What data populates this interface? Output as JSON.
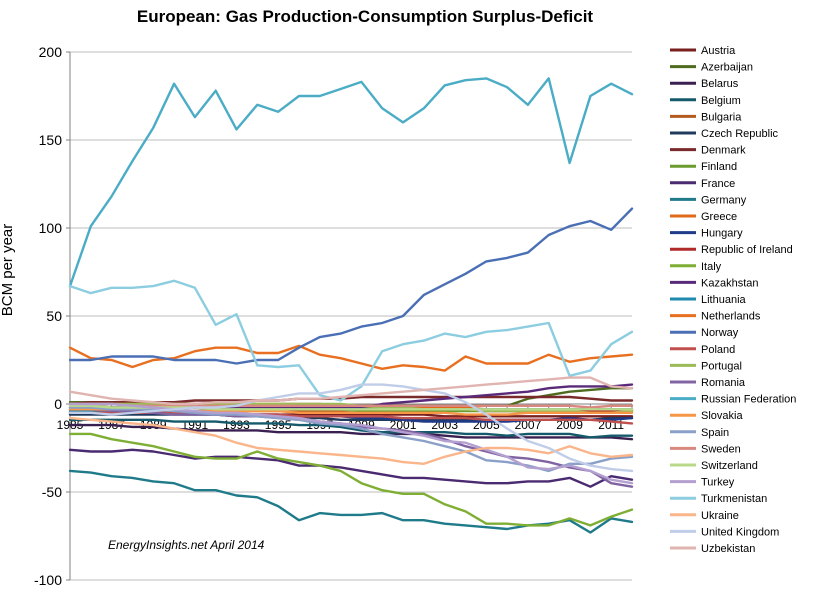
{
  "chart_data": {
    "type": "line",
    "title": "European: Gas Production-Consumption  Surplus-Deficit",
    "ylabel": "BCM per year",
    "xlabel": "",
    "annotation": "EnergyInsights.net April 2014",
    "ylim": [
      -100,
      200
    ],
    "yticks": [
      -100,
      -50,
      0,
      50,
      100,
      150,
      200
    ],
    "x": [
      1985,
      1986,
      1987,
      1988,
      1989,
      1990,
      1991,
      1992,
      1993,
      1994,
      1995,
      1996,
      1997,
      1998,
      1999,
      2000,
      2001,
      2002,
      2003,
      2004,
      2005,
      2006,
      2007,
      2008,
      2009,
      2010,
      2011,
      2012
    ],
    "xtick_labels": [
      "1985",
      "1987",
      "1989",
      "1991",
      "1993",
      "1995",
      "1997",
      "1999",
      "2001",
      "2003",
      "2005",
      "2007",
      "2009",
      "2011"
    ],
    "grid": "horizontal",
    "legend_position": "right",
    "series": [
      {
        "name": "Austria",
        "color": "#7a1f1f",
        "values": [
          -5,
          -5,
          -5,
          -5,
          -5,
          -5,
          -5,
          -6,
          -6,
          -6,
          -6,
          -6,
          -6,
          -6,
          -6,
          -6,
          -6,
          -6,
          -7,
          -7,
          -7,
          -7,
          -7,
          -7,
          -7,
          -7,
          -7,
          -7
        ]
      },
      {
        "name": "Azerbaijan",
        "color": "#4e6b1f",
        "values": [
          1,
          1,
          1,
          0,
          0,
          0,
          0,
          -1,
          -1,
          -2,
          -2,
          -2,
          -2,
          -2,
          -1,
          -1,
          -1,
          -1,
          -1,
          -1,
          -1,
          -1,
          3,
          5,
          7,
          8,
          9,
          9
        ]
      },
      {
        "name": "Belarus",
        "color": "#3a2050",
        "values": [
          -12,
          -12,
          -12,
          -13,
          -13,
          -14,
          -15,
          -15,
          -15,
          -15,
          -16,
          -16,
          -16,
          -16,
          -17,
          -17,
          -17,
          -17,
          -18,
          -19,
          -19,
          -19,
          -19,
          -19,
          -19,
          -19,
          -19,
          -20
        ]
      },
      {
        "name": "Belgium",
        "color": "#155a6b",
        "values": [
          -9,
          -9,
          -9,
          -9,
          -9,
          -10,
          -10,
          -10,
          -11,
          -11,
          -11,
          -12,
          -12,
          -13,
          -15,
          -16,
          -16,
          -16,
          -16,
          -17,
          -17,
          -18,
          -17,
          -17,
          -17,
          -19,
          -18,
          -18
        ]
      },
      {
        "name": "Bulgaria",
        "color": "#b35a1f",
        "values": [
          -5,
          -5,
          -5,
          -5,
          -5,
          -5,
          -4,
          -4,
          -4,
          -4,
          -4,
          -4,
          -4,
          -4,
          -3,
          -3,
          -3,
          -3,
          -3,
          -3,
          -3,
          -3,
          -3,
          -3,
          -3,
          -3,
          -3,
          -3
        ]
      },
      {
        "name": "Czech Republic",
        "color": "#1f3a5c",
        "values": [
          -6,
          -6,
          -6,
          -6,
          -6,
          -6,
          -6,
          -6,
          -7,
          -7,
          -7,
          -8,
          -8,
          -9,
          -9,
          -9,
          -9,
          -9,
          -9,
          -9,
          -9,
          -9,
          -9,
          -9,
          -9,
          -9,
          -8,
          -8
        ]
      },
      {
        "name": "Denmark",
        "color": "#7a2a2a",
        "values": [
          0,
          1,
          1,
          1,
          1,
          1,
          2,
          2,
          2,
          2,
          2,
          3,
          3,
          3,
          4,
          4,
          4,
          4,
          4,
          4,
          4,
          4,
          4,
          4,
          4,
          3,
          2,
          2
        ]
      },
      {
        "name": "Finland",
        "color": "#6b9a2e",
        "values": [
          -1,
          -1,
          -2,
          -2,
          -2,
          -2,
          -2,
          -3,
          -3,
          -3,
          -3,
          -3,
          -3,
          -3,
          -4,
          -4,
          -4,
          -4,
          -4,
          -4,
          -4,
          -4,
          -4,
          -4,
          -4,
          -4,
          -4,
          -4
        ]
      },
      {
        "name": "France",
        "color": "#4a2a70",
        "values": [
          -26,
          -27,
          -27,
          -26,
          -27,
          -29,
          -31,
          -30,
          -30,
          -31,
          -32,
          -35,
          -35,
          -36,
          -38,
          -40,
          -42,
          -42,
          -43,
          -44,
          -45,
          -45,
          -44,
          -44,
          -42,
          -47,
          -41,
          -43
        ]
      },
      {
        "name": "Germany",
        "color": "#1f7a8a",
        "values": [
          -38,
          -39,
          -41,
          -42,
          -44,
          -45,
          -49,
          -49,
          -52,
          -53,
          -58,
          -66,
          -62,
          -63,
          -63,
          -62,
          -66,
          -66,
          -68,
          -69,
          -70,
          -71,
          -69,
          -68,
          -66,
          -73,
          -65,
          -67
        ]
      },
      {
        "name": "Greece",
        "color": "#e06a1a",
        "values": [
          0,
          0,
          0,
          0,
          0,
          0,
          0,
          0,
          0,
          0,
          0,
          0,
          0,
          -1,
          -1,
          -2,
          -2,
          -2,
          -2,
          -2,
          -3,
          -3,
          -4,
          -4,
          -3,
          -4,
          -4,
          -4
        ]
      },
      {
        "name": "Hungary",
        "color": "#1f3a8a",
        "values": [
          -3,
          -3,
          -4,
          -4,
          -4,
          -5,
          -5,
          -5,
          -6,
          -6,
          -6,
          -7,
          -7,
          -7,
          -8,
          -8,
          -9,
          -10,
          -10,
          -10,
          -10,
          -10,
          -9,
          -9,
          -8,
          -9,
          -9,
          -8
        ]
      },
      {
        "name": "Republic of Ireland",
        "color": "#b02a2a",
        "values": [
          0,
          0,
          0,
          0,
          0,
          0,
          0,
          -1,
          -1,
          -1,
          -1,
          -1,
          -1,
          -2,
          -2,
          -3,
          -3,
          -3,
          -3,
          -3,
          -4,
          -4,
          -4,
          -4,
          -4,
          -4,
          -4,
          -4
        ]
      },
      {
        "name": "Italy",
        "color": "#7fae35",
        "values": [
          -17,
          -17,
          -20,
          -22,
          -24,
          -27,
          -30,
          -31,
          -31,
          -27,
          -31,
          -33,
          -35,
          -38,
          -45,
          -49,
          -51,
          -51,
          -57,
          -61,
          -68,
          -68,
          -69,
          -69,
          -65,
          -69,
          -64,
          -60
        ]
      },
      {
        "name": "Kazakhstan",
        "color": "#5a2a7a",
        "values": [
          -2,
          -2,
          -2,
          -2,
          -2,
          -2,
          -2,
          -2,
          -2,
          -2,
          -2,
          -2,
          -2,
          -2,
          -2,
          0,
          1,
          2,
          3,
          4,
          5,
          6,
          7,
          9,
          10,
          10,
          10,
          11
        ]
      },
      {
        "name": "Lithuania",
        "color": "#1f8ab0",
        "values": [
          -4,
          -4,
          -4,
          -4,
          -4,
          -4,
          -4,
          -4,
          -3,
          -3,
          -3,
          -3,
          -3,
          -3,
          -3,
          -3,
          -3,
          -3,
          -3,
          -3,
          -3,
          -3,
          -3,
          -3,
          -3,
          -3,
          -3,
          -3
        ]
      },
      {
        "name": "Netherlands",
        "color": "#e86f1f",
        "values": [
          32,
          26,
          25,
          21,
          25,
          26,
          30,
          32,
          32,
          29,
          29,
          33,
          28,
          26,
          23,
          20,
          22,
          21,
          19,
          27,
          23,
          23,
          23,
          28,
          24,
          26,
          27,
          28
        ]
      },
      {
        "name": "Norway",
        "color": "#4a6fb5",
        "values": [
          25,
          25,
          27,
          27,
          27,
          25,
          25,
          25,
          23,
          25,
          25,
          32,
          38,
          40,
          44,
          46,
          50,
          62,
          68,
          74,
          81,
          83,
          86,
          96,
          101,
          104,
          99,
          111
        ]
      },
      {
        "name": "Poland",
        "color": "#c0504d",
        "values": [
          -5,
          -5,
          -5,
          -5,
          -5,
          -5,
          -5,
          -5,
          -6,
          -6,
          -6,
          -7,
          -7,
          -7,
          -7,
          -7,
          -8,
          -8,
          -8,
          -8,
          -9,
          -9,
          -9,
          -9,
          -9,
          -9,
          -10,
          -11
        ]
      },
      {
        "name": "Portugal",
        "color": "#9bbb59",
        "values": [
          0,
          0,
          0,
          0,
          0,
          0,
          0,
          0,
          0,
          0,
          0,
          0,
          0,
          0,
          -1,
          -2,
          -2,
          -3,
          -3,
          -3,
          -4,
          -4,
          -4,
          -4,
          -4,
          -5,
          -5,
          -4
        ]
      },
      {
        "name": "Romania",
        "color": "#8064a2",
        "values": [
          -3,
          -3,
          -4,
          -4,
          -5,
          -6,
          -6,
          -6,
          -7,
          -7,
          -8,
          -9,
          -10,
          -11,
          -13,
          -14,
          -15,
          -17,
          -20,
          -24,
          -27,
          -30,
          -31,
          -33,
          -36,
          -38,
          -45,
          -47
        ]
      },
      {
        "name": "Russian Federation",
        "color": "#4bacc6",
        "values": [
          67,
          101,
          118,
          138,
          157,
          182,
          163,
          178,
          156,
          170,
          166,
          175,
          175,
          179,
          183,
          168,
          160,
          168,
          181,
          184,
          185,
          180,
          170,
          185,
          137,
          175,
          182,
          176
        ]
      },
      {
        "name": "Slovakia",
        "color": "#f79646",
        "values": [
          -3,
          -3,
          -3,
          -3,
          -3,
          -4,
          -4,
          -4,
          -4,
          -4,
          -4,
          -5,
          -5,
          -5,
          -5,
          -5,
          -5,
          -5,
          -5,
          -6,
          -6,
          -6,
          -5,
          -5,
          -5,
          -5,
          -5,
          -5
        ]
      },
      {
        "name": "Spain",
        "color": "#8aa0c8",
        "values": [
          -2,
          -2,
          -3,
          -3,
          -3,
          -4,
          -5,
          -6,
          -6,
          -7,
          -8,
          -9,
          -11,
          -12,
          -14,
          -17,
          -19,
          -21,
          -24,
          -27,
          -32,
          -33,
          -35,
          -38,
          -34,
          -34,
          -31,
          -30
        ]
      },
      {
        "name": "Sweden",
        "color": "#d98880",
        "values": [
          0,
          0,
          0,
          -1,
          -1,
          -1,
          -1,
          -1,
          -1,
          -1,
          -1,
          -1,
          -1,
          -1,
          -1,
          -1,
          -1,
          -1,
          -1,
          -1,
          -1,
          -1,
          -1,
          -1,
          -1,
          -2,
          -1,
          -1
        ]
      },
      {
        "name": "Switzerland",
        "color": "#b8d88a",
        "values": [
          -1,
          -1,
          -2,
          -2,
          -2,
          -2,
          -2,
          -3,
          -3,
          -3,
          -3,
          -3,
          -3,
          -3,
          -3,
          -3,
          -3,
          -3,
          -3,
          -3,
          -3,
          -3,
          -3,
          -3,
          -3,
          -3,
          -3,
          -3
        ]
      },
      {
        "name": "Turkey",
        "color": "#b4a0d0",
        "values": [
          0,
          0,
          0,
          -1,
          -2,
          -3,
          -4,
          -5,
          -5,
          -6,
          -7,
          -8,
          -10,
          -11,
          -12,
          -14,
          -16,
          -18,
          -21,
          -22,
          -26,
          -30,
          -36,
          -37,
          -35,
          -38,
          -43,
          -45
        ]
      },
      {
        "name": "Turkmenistan",
        "color": "#8ccde0",
        "values": [
          67,
          63,
          66,
          66,
          67,
          70,
          66,
          45,
          51,
          22,
          21,
          22,
          5,
          2,
          10,
          30,
          34,
          36,
          40,
          38,
          41,
          42,
          44,
          46,
          16,
          19,
          34,
          41
        ]
      },
      {
        "name": "Ukraine",
        "color": "#fab58a",
        "values": [
          -8,
          -9,
          -10,
          -11,
          -12,
          -14,
          -16,
          -18,
          -22,
          -25,
          -26,
          -27,
          -28,
          -29,
          -30,
          -31,
          -33,
          -34,
          -30,
          -27,
          -25,
          -25,
          -26,
          -28,
          -24,
          -28,
          -30,
          -29
        ]
      },
      {
        "name": "United Kingdom",
        "color": "#c0cde8",
        "values": [
          -5,
          -5,
          -6,
          -5,
          -4,
          -3,
          -2,
          -2,
          -1,
          2,
          4,
          6,
          6,
          8,
          11,
          11,
          10,
          8,
          6,
          1,
          -6,
          -14,
          -21,
          -25,
          -31,
          -35,
          -37,
          -38
        ]
      },
      {
        "name": "Uzbekistan",
        "color": "#e0b4b0",
        "values": [
          7,
          5,
          3,
          2,
          1,
          0,
          0,
          1,
          1,
          2,
          2,
          3,
          3,
          4,
          5,
          6,
          7,
          8,
          9,
          10,
          11,
          12,
          13,
          14,
          15,
          15,
          10,
          9
        ]
      }
    ]
  }
}
